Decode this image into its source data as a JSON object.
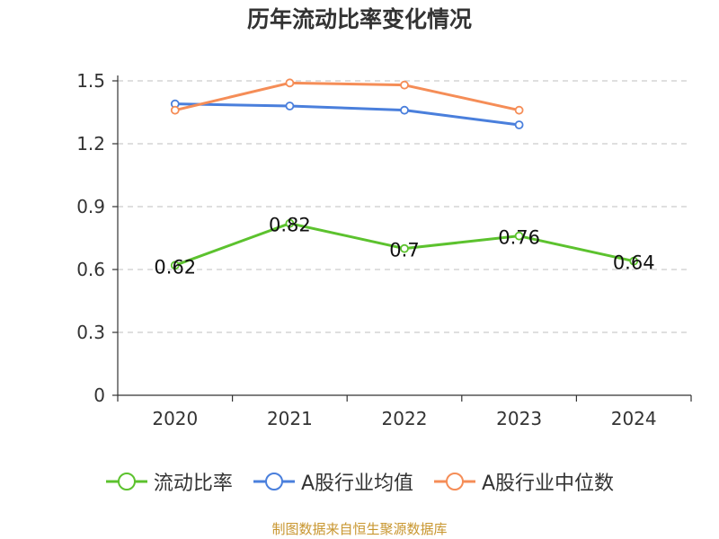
{
  "chart_data": {
    "type": "line",
    "title": "历年流动比率变化情况",
    "categories": [
      "2020",
      "2021",
      "2022",
      "2023",
      "2024"
    ],
    "ylim": [
      0,
      1.5
    ],
    "yticks": [
      "0",
      "0.3",
      "0.6",
      "0.9",
      "1.2",
      "1.5"
    ],
    "ytick_values": [
      0,
      0.3,
      0.6,
      0.9,
      1.2,
      1.5
    ],
    "grid": true,
    "legend_position": "bottom",
    "series": [
      {
        "name": "流动比率",
        "color": "#5cc22e",
        "values": [
          0.62,
          0.82,
          0.7,
          0.76,
          0.64
        ],
        "labels": [
          "0.62",
          "0.82",
          "0.7",
          "0.76",
          "0.64"
        ]
      },
      {
        "name": "A股行业均值",
        "color": "#4a7fdc",
        "values": [
          1.39,
          1.38,
          1.36,
          1.29,
          null
        ]
      },
      {
        "name": "A股行业中位数",
        "color": "#f58d57",
        "values": [
          1.36,
          1.49,
          1.48,
          1.36,
          null
        ]
      }
    ]
  },
  "source_note": "制图数据来自恒生聚源数据库"
}
